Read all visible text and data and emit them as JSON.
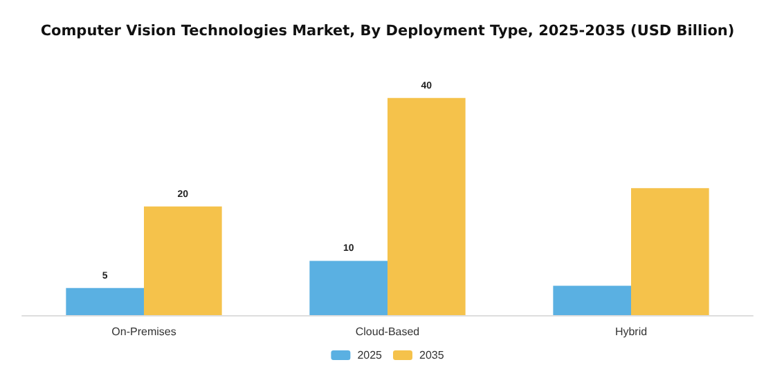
{
  "chart_data": {
    "type": "bar",
    "title": "Computer Vision Technologies Market, By Deployment Type, 2025-2035 (USD Billion)",
    "categories": [
      "On-Premises",
      "Cloud-Based",
      "Hybrid"
    ],
    "series": [
      {
        "name": "2025",
        "color": "#5ab0e2",
        "values": [
          5,
          10,
          5.4
        ],
        "value_labels": [
          "5",
          "10",
          null
        ]
      },
      {
        "name": "2035",
        "color": "#f5c24b",
        "values": [
          20,
          40,
          23.4
        ],
        "value_labels": [
          "20",
          "40",
          null
        ]
      }
    ],
    "legend": "bottom",
    "grid": false
  }
}
